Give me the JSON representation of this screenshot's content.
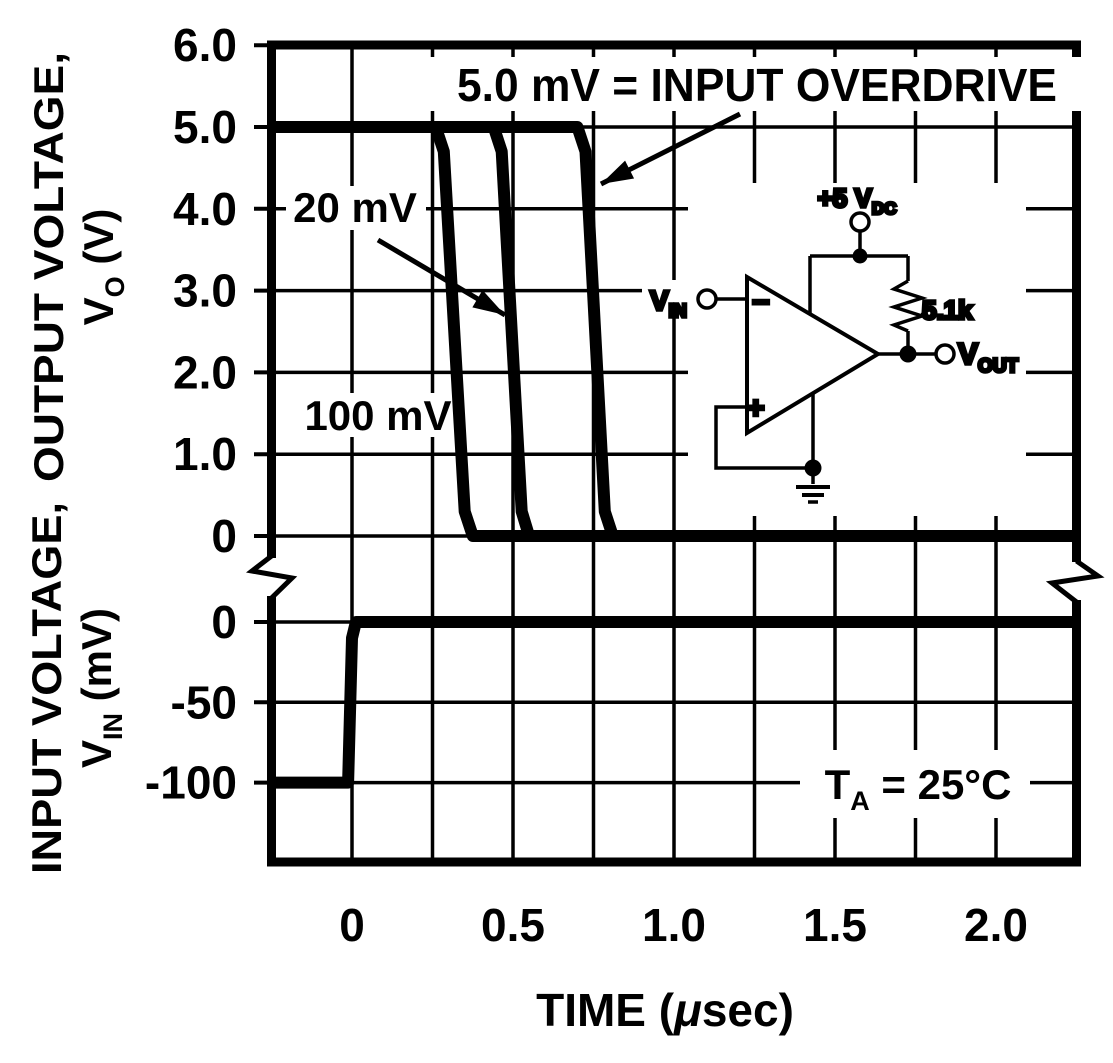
{
  "colors": {
    "ink": "#000000",
    "paper": "#ffffff"
  },
  "chart_data": {
    "type": "line",
    "grid": true,
    "axis_break_between_panels": true,
    "x_axis": {
      "label_pre": "TIME (",
      "label_mu": "μ",
      "label_post": "sec)",
      "range": [
        -0.25,
        2.25
      ],
      "grid_step": 0.25,
      "ticks": [
        0,
        0.5,
        1.0,
        1.5,
        2.0
      ],
      "tick_labels": [
        "0",
        "0.5",
        "1.0",
        "1.5",
        "2.0"
      ]
    },
    "panels": [
      {
        "id": "output",
        "y_title_line1": "OUTPUT VOLTAGE,",
        "y_title_line2_pre": "V",
        "y_title_line2_sub": "O",
        "y_title_line2_post": " (V)",
        "y_range": [
          0,
          6
        ],
        "y_grid_step": 1.0,
        "y_ticks": [
          6.0,
          5.0,
          4.0,
          3.0,
          2.0,
          1.0,
          0
        ],
        "y_tick_labels": [
          "6.0",
          "5.0",
          "4.0",
          "3.0",
          "2.0",
          "1.0",
          "0"
        ],
        "series": [
          {
            "name": "100 mV input overdrive",
            "points": [
              [
                -0.25,
                5
              ],
              [
                0.26,
                5
              ],
              [
                0.285,
                4.7
              ],
              [
                0.35,
                0.3
              ],
              [
                0.375,
                0
              ],
              [
                2.25,
                0
              ]
            ]
          },
          {
            "name": "20 mV input overdrive",
            "points": [
              [
                -0.25,
                5
              ],
              [
                0.44,
                5
              ],
              [
                0.465,
                4.7
              ],
              [
                0.527,
                0.3
              ],
              [
                0.55,
                0
              ],
              [
                2.25,
                0
              ]
            ]
          },
          {
            "name": "5.0 mV input overdrive",
            "points": [
              [
                -0.25,
                5
              ],
              [
                0.7,
                5
              ],
              [
                0.725,
                4.7
              ],
              [
                0.785,
                0.3
              ],
              [
                0.81,
                0
              ],
              [
                2.25,
                0
              ]
            ]
          }
        ]
      },
      {
        "id": "input",
        "y_title_line1": "INPUT VOLTAGE,",
        "y_title_line2_pre": "V",
        "y_title_line2_sub": "IN",
        "y_title_line2_post": " (mV)",
        "y_range": [
          -150,
          0
        ],
        "y_grid_step": 50,
        "y_ticks": [
          0,
          -50,
          -100
        ],
        "y_tick_labels": [
          "0",
          "-50",
          "-100"
        ],
        "series": [
          {
            "name": "input voltage step",
            "points": [
              [
                -0.25,
                -100
              ],
              [
                -0.012,
                -100
              ],
              [
                0,
                -10
              ],
              [
                0.012,
                0
              ],
              [
                2.25,
                0
              ]
            ]
          }
        ]
      }
    ],
    "annotations": {
      "overdrive": {
        "text": "5.0 mV = INPUT OVERDRIVE"
      },
      "label_20mv": {
        "text": "20 mV"
      },
      "label_100mv": {
        "text": "100 mV"
      },
      "temperature": {
        "pre": "T",
        "sub": "A",
        "post": " = 25°C"
      }
    }
  },
  "inset_circuit": {
    "supply_pre": "+5 V",
    "supply_sub": "DC",
    "resistor": "5.1k",
    "input_pre": "V",
    "input_sub": "IN",
    "output_pre": "V",
    "output_sub": "OUT",
    "inverting_input": "−",
    "noninverting_input": "+"
  }
}
